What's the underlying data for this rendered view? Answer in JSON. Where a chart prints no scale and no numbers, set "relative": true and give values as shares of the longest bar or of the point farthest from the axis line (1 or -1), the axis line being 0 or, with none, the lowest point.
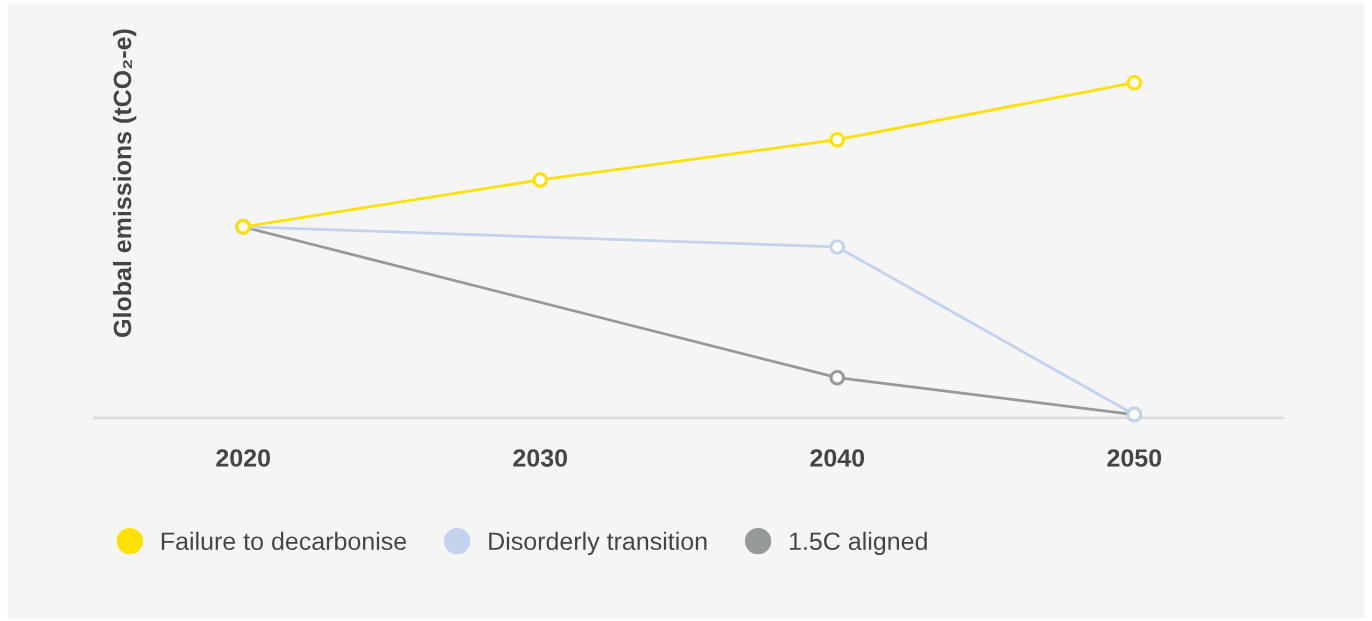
{
  "chart_data": {
    "type": "line",
    "relative": true,
    "ylabel": "Global emissions (tCO₂-e)",
    "xlim": [
      2015,
      2055
    ],
    "xticks": [
      2020,
      2030,
      2040,
      2050
    ],
    "tick_labels": "x",
    "grid": false,
    "legend": "bottom left",
    "marker": "circle",
    "line_style": "solid",
    "series": [
      {
        "name": "Failure to decarbonise",
        "color": "#ffe000",
        "x": [
          2020,
          2030,
          2040,
          2050
        ],
        "values": [
          0.57,
          0.71,
          0.83,
          1
        ]
      },
      {
        "name": "Disorderly transition",
        "color": "#c3d3ee",
        "x": [
          2020,
          2040,
          2050
        ],
        "values": [
          0.57,
          0.51,
          0.01
        ]
      },
      {
        "name": "1.5C aligned",
        "color": "#96999a",
        "x": [
          2020,
          2040,
          2050
        ],
        "values": [
          0.57,
          0.12,
          0.01
        ]
      }
    ]
  }
}
